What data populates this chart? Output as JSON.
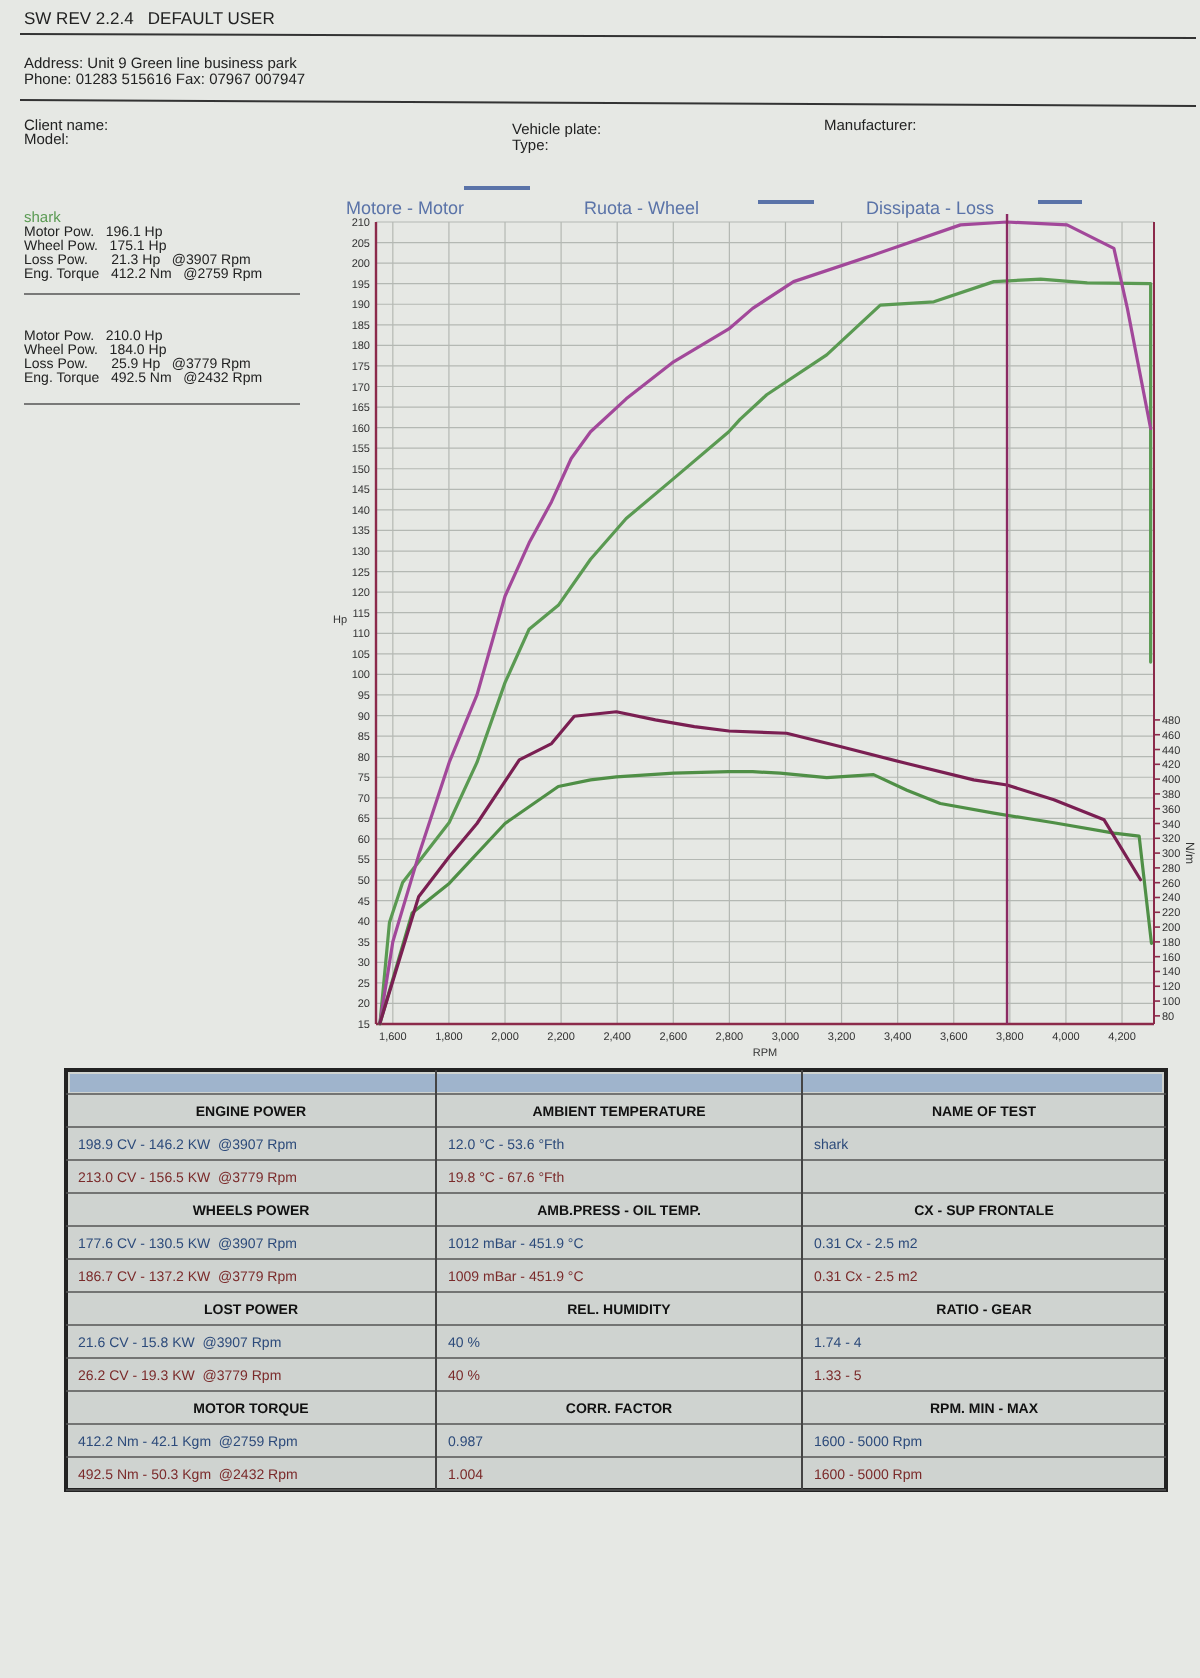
{
  "chart_data": {
    "type": "line",
    "xlabel": "RPM",
    "ylabel": "Hp",
    "y2label": "N/m",
    "xlim": [
      1540,
      4314
    ],
    "xticks": [
      {
        "value": 1600,
        "label": "1,600"
      },
      {
        "value": 1800,
        "label": "1,800"
      },
      {
        "value": 2000,
        "label": "2,000"
      },
      {
        "value": 2200,
        "label": "2,200"
      },
      {
        "value": 2400,
        "label": "2,400"
      },
      {
        "value": 2600,
        "label": "2,600"
      },
      {
        "value": 2800,
        "label": "2,800"
      },
      {
        "value": 3000,
        "label": "3,000"
      },
      {
        "value": 3200,
        "label": "3,200"
      },
      {
        "value": 3400,
        "label": "3,400"
      },
      {
        "value": 3600,
        "label": "3,600"
      },
      {
        "value": 3800,
        "label": "3,800"
      },
      {
        "value": 4000,
        "label": "4,000"
      },
      {
        "value": 4200,
        "label": "4,200"
      }
    ],
    "ylim": [
      15,
      210
    ],
    "yticks": [
      15,
      20,
      25,
      30,
      35,
      40,
      45,
      50,
      55,
      60,
      65,
      70,
      75,
      80,
      85,
      90,
      95,
      100,
      105,
      110,
      115,
      120,
      125,
      130,
      135,
      140,
      145,
      150,
      155,
      160,
      165,
      170,
      175,
      180,
      185,
      190,
      195,
      200,
      205,
      210
    ],
    "y2lim": [
      69,
      1153
    ],
    "y2ticks": [
      80,
      100,
      120,
      140,
      160,
      180,
      200,
      220,
      240,
      260,
      280,
      300,
      320,
      340,
      360,
      380,
      400,
      420,
      440,
      460,
      480
    ],
    "grid": true,
    "series": [
      {
        "name": "shark",
        "color": "#5a9a52",
        "x": [
          1554,
          1588,
          1635,
          1801,
          1900,
          2000,
          2086,
          2190,
          2305,
          2432,
          2601,
          2798,
          2838,
          2933,
          3147,
          3338,
          3529,
          3743,
          3910,
          4076,
          4302,
          4302
        ],
        "values": [
          15,
          39.7,
          49.4,
          64,
          78.6,
          98,
          111,
          116.8,
          128,
          137.9,
          147.6,
          159,
          162,
          168,
          177.7,
          189.8,
          190.6,
          195.5,
          196.1,
          195.2,
          195,
          103
        ]
      },
      {
        "color": "#a2489a",
        "x": [
          1554,
          1600,
          1692,
          1801,
          1900,
          2000,
          2086,
          2166,
          2236,
          2305,
          2432,
          2601,
          2798,
          2883,
          3029,
          3314,
          3624,
          3790,
          4004,
          4171,
          4219,
          4302
        ],
        "values": [
          15.3,
          35,
          56,
          78.6,
          95,
          119,
          132,
          142,
          152.5,
          159,
          167,
          176,
          184,
          189,
          195.5,
          202,
          209.3,
          210,
          209.3,
          203.6,
          189,
          159.8
        ]
      },
      {
        "axis": "y2",
        "color": "#4f8f46",
        "x": [
          1554,
          1669,
          1801,
          2000,
          2190,
          2305,
          2397,
          2601,
          2798,
          2883,
          2981,
          3147,
          3314,
          3433,
          3552,
          3743,
          3957,
          4171,
          4261,
          4305
        ],
        "values": [
          70,
          219,
          259,
          340,
          390,
          399,
          403,
          408,
          410,
          410,
          408,
          402,
          406,
          385,
          367,
          354,
          341,
          327,
          323,
          178
        ]
      },
      {
        "axis": "y2",
        "color": "#7a1f52",
        "x": [
          1554,
          1692,
          1801,
          1900,
          2051,
          2166,
          2247,
          2397,
          2536,
          2675,
          2798,
          3004,
          3195,
          3433,
          3671,
          3790,
          3957,
          4136,
          4266
        ],
        "values": [
          70,
          241,
          295,
          340,
          426,
          448,
          485,
          491,
          480,
          471,
          465,
          462,
          444,
          421,
          399,
          392,
          372,
          345,
          264
        ]
      }
    ],
    "ref_lines": [
      {
        "axis": "x",
        "value": 3790,
        "color": "#8b2a63"
      }
    ],
    "annotations": [
      "SW REV 2.2.4   DEFAULT USER",
      "Address: Unit 9 Green line business park",
      "Phone: 01283 515616 Fax: 07967 007947",
      "Client name:",
      "Model:",
      "Vehicle plate:",
      "Type:",
      "Manufacturer:",
      "Motore - Motor",
      "Ruota - Wheel",
      "Dissipata - Loss",
      "Motor Pow.   196.1 Hp",
      "Wheel Pow.   175.1 Hp",
      "Loss Pow.      21.3 Hp   @3907 Rpm",
      "Eng. Torque   412.2 Nm   @2759 Rpm",
      "Motor Pow.   210.0 Hp",
      "Wheel Pow.   184.0 Hp",
      "Loss Pow.      25.9 Hp   @3779 Rpm",
      "Eng. Torque   492.5 Nm   @2432 Rpm",
      "ENGINE POWER",
      "AMBIENT TEMPERATURE",
      "NAME OF TEST",
      "198.9 CV - 146.2 KW  @3907 Rpm",
      "12.0 °C - 53.6 °Fth",
      "shark",
      "213.0 CV - 156.5 KW  @3779 Rpm",
      "19.8 °C - 67.6 °Fth",
      "WHEELS POWER",
      "AMB.PRESS - OIL TEMP.",
      "CX - SUP FRONTALE",
      "177.6 CV - 130.5 KW  @3907 Rpm",
      "1012 mBar - 451.9 °C",
      "0.31 Cx - 2.5 m2",
      "186.7 CV - 137.2 KW  @3779 Rpm",
      "1009 mBar - 451.9 °C",
      "0.31 Cx - 2.5 m2",
      "LOST POWER",
      "REL. HUMIDITY",
      "RATIO - GEAR",
      "21.6 CV - 15.8 KW  @3907 Rpm",
      "40 %",
      "1.74 - 4",
      "26.2 CV - 19.3 KW  @3779 Rpm",
      "40 %",
      "1.33 - 5",
      "MOTOR TORQUE",
      "CORR. FACTOR",
      "RPM. MIN - MAX",
      "412.2 Nm - 42.1 Kgm  @2759 Rpm",
      "0.987",
      "1600 - 5000 Rpm",
      "492.5 Nm - 50.3 Kgm  @2432 Rpm",
      "1.004",
      "1600 - 5000 Rpm"
    ]
  }
}
